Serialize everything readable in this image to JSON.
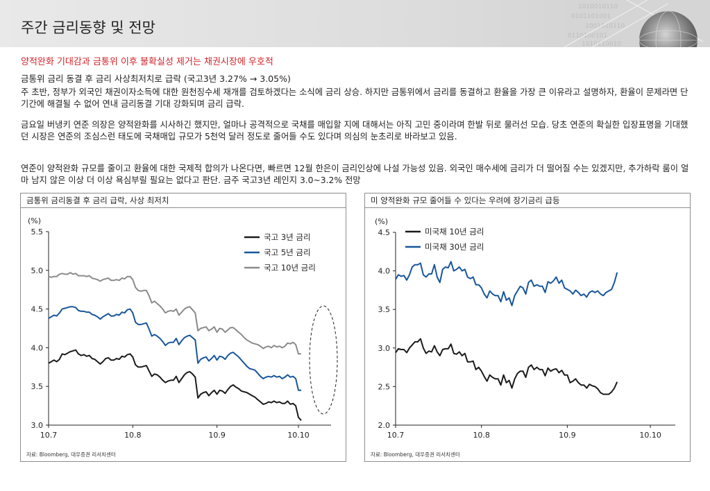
{
  "header": {
    "title": "주간 금리동향 및 전망"
  },
  "headline": "양적완화 기대감과 금통위 이후 불확실성 제거는 채권시장에 우호적",
  "subheadline": "금통위 금리 동결 후 금리 사상최저치로 급락 (국고3년 3.27% → 3.05%)",
  "paragraphs": [
    "주 초반, 정부가 외국인 채권이자소득에 대한 원천징수세 재개를 검토하겠다는 소식에 금리 상승. 하지만 금통위에서 금리를 동결하고 환율을 가장 큰 이유라고 설명하자, 환율이 문제라면 단기간에 해결될 수 없어 연내 금리동결 기대 강화되며 금리 급락.",
    "금요일 버냉키 연준 의장은 양적완화를 시사하긴 했지만, 얼마나 공격적으로 국채를 매입할 지에 대해서는 아직 고민 중이라며 한발 뒤로 물러선 모습. 당초 연준의 확실한 입장표명을 기대했던 시장은 연준의 조심스런 태도에 국채매입 규모가 5천억 달러 정도로 줄어들 수도 있다며 의심의 눈초리로 바라보고 있음.",
    "연준이 양적완화 규모를 줄이고 환율에 대한 국제적 합의가 나온다면, 빠르면 12월 한은이 금리인상에 나설 가능성 있음. 외국인 매수세에 금리가 더 떨어질 수는 있겠지만, 추가하락 룸이 얼마 남지 않은 이상 더 이상 욕심부릴 필요는 없다고 판단. 금주 국고3년 레인지 3.0~3.2% 전망"
  ],
  "chart_data": [
    {
      "type": "line",
      "title": "금통위 금리동결 후 금리 급락, 사상 최저치",
      "ylabel": "(%)",
      "ylim": [
        3.0,
        5.5
      ],
      "yticks": [
        "3.0",
        "3.5",
        "4.0",
        "4.5",
        "5.0",
        "5.5"
      ],
      "xticks": [
        "10.7",
        "10.8",
        "10.9",
        "10.10"
      ],
      "x_range": [
        0,
        104
      ],
      "x_tick_positions": [
        0,
        31,
        62,
        92
      ],
      "legend_position": "top-right",
      "series": [
        {
          "name": "국고 3년 금리",
          "color": "#1a1a1a",
          "values": [
            3.8,
            3.82,
            3.84,
            3.82,
            3.85,
            3.92,
            3.91,
            3.93,
            3.95,
            3.96,
            3.97,
            3.92,
            3.9,
            3.91,
            3.89,
            3.9,
            3.86,
            3.85,
            3.82,
            3.79,
            3.82,
            3.86,
            3.87,
            3.84,
            3.84,
            3.86,
            3.85,
            3.89,
            3.88,
            3.91,
            3.92,
            3.88,
            3.78,
            3.75,
            3.75,
            3.76,
            3.77,
            3.7,
            3.63,
            3.66,
            3.65,
            3.62,
            3.58,
            3.55,
            3.57,
            3.58,
            3.58,
            3.63,
            3.55,
            3.6,
            3.65,
            3.68,
            3.69,
            3.66,
            3.62,
            3.35,
            3.4,
            3.42,
            3.43,
            3.38,
            3.42,
            3.45,
            3.4,
            3.45,
            3.44,
            3.41,
            3.46,
            3.5,
            3.52,
            3.49,
            3.47,
            3.44,
            3.43,
            3.42,
            3.4,
            3.38,
            3.36,
            3.33,
            3.3,
            3.27,
            3.28,
            3.3,
            3.29,
            3.31,
            3.29,
            3.3,
            3.28,
            3.28,
            3.31,
            3.27,
            3.28,
            3.25,
            3.1,
            3.06
          ]
        },
        {
          "name": "국고 5년 금리",
          "color": "#17569b",
          "values": [
            4.38,
            4.4,
            4.42,
            4.41,
            4.45,
            4.5,
            4.51,
            4.52,
            4.53,
            4.53,
            4.52,
            4.48,
            4.47,
            4.47,
            4.46,
            4.46,
            4.43,
            4.42,
            4.4,
            4.37,
            4.4,
            4.42,
            4.44,
            4.41,
            4.41,
            4.43,
            4.42,
            4.46,
            4.45,
            4.49,
            4.5,
            4.45,
            4.33,
            4.3,
            4.3,
            4.31,
            4.32,
            4.24,
            4.15,
            4.17,
            4.15,
            4.12,
            4.08,
            4.03,
            4.06,
            4.07,
            4.07,
            4.12,
            4.04,
            4.09,
            4.13,
            4.15,
            4.16,
            4.13,
            4.1,
            3.8,
            3.85,
            3.87,
            3.88,
            3.83,
            3.86,
            3.9,
            3.84,
            3.89,
            3.88,
            3.85,
            3.9,
            3.93,
            3.94,
            3.91,
            3.88,
            3.84,
            3.8,
            3.76,
            3.73,
            3.72,
            3.71,
            3.67,
            3.63,
            3.6,
            3.62,
            3.63,
            3.62,
            3.64,
            3.62,
            3.63,
            3.6,
            3.62,
            3.65,
            3.62,
            3.63,
            3.6,
            3.45,
            3.45
          ]
        },
        {
          "name": "국고 10년 금리",
          "color": "#8a8a8a",
          "values": [
            4.92,
            4.91,
            4.92,
            4.92,
            4.95,
            4.96,
            4.95,
            4.95,
            4.97,
            4.95,
            4.96,
            4.93,
            4.93,
            4.93,
            4.92,
            4.93,
            4.9,
            4.89,
            4.88,
            4.86,
            4.88,
            4.89,
            4.9,
            4.87,
            4.87,
            4.88,
            4.87,
            4.9,
            4.89,
            4.92,
            4.92,
            4.88,
            4.78,
            4.74,
            4.73,
            4.74,
            4.74,
            4.67,
            4.58,
            4.6,
            4.57,
            4.54,
            4.5,
            4.45,
            4.47,
            4.48,
            4.47,
            4.5,
            4.42,
            4.46,
            4.5,
            4.52,
            4.53,
            4.49,
            4.45,
            4.22,
            4.25,
            4.26,
            4.27,
            4.22,
            4.24,
            4.27,
            4.2,
            4.25,
            4.24,
            4.2,
            4.23,
            4.26,
            4.26,
            4.23,
            4.2,
            4.17,
            4.13,
            4.1,
            4.08,
            4.06,
            4.05,
            4.04,
            4.02,
            3.99,
            4.01,
            4.02,
            4.0,
            4.03,
            4.01,
            4.02,
            4.0,
            4.02,
            4.06,
            4.05,
            4.07,
            4.04,
            3.92,
            3.92
          ]
        }
      ]
    },
    {
      "type": "line",
      "title": "미 양적완화 규모 줄어들 수 있다는 우려에 장기금리 급등",
      "ylabel": "(%)",
      "ylim": [
        2.0,
        4.5
      ],
      "yticks": [
        "2.0",
        "2.5",
        "3.0",
        "3.5",
        "4.0",
        "4.5"
      ],
      "xticks": [
        "10.7",
        "10.8",
        "10.9",
        "10.10"
      ],
      "x_range": [
        0,
        101
      ],
      "x_tick_positions": [
        0,
        31,
        62,
        92
      ],
      "legend_position": "top-left",
      "series": [
        {
          "name": "미국채 10년 금리",
          "color": "#1a1a1a",
          "values": [
            2.94,
            2.99,
            2.98,
            2.98,
            2.94,
            3.0,
            3.04,
            3.08,
            3.08,
            3.12,
            3.0,
            2.93,
            2.96,
            2.95,
            3.03,
            2.95,
            2.9,
            2.98,
            2.99,
            2.99,
            3.05,
            2.93,
            2.92,
            2.95,
            2.9,
            2.93,
            2.82,
            2.82,
            2.83,
            2.72,
            2.75,
            2.7,
            2.63,
            2.57,
            2.65,
            2.62,
            2.6,
            2.6,
            2.52,
            2.65,
            2.55,
            2.58,
            2.48,
            2.6,
            2.67,
            2.7,
            2.7,
            2.62,
            2.75,
            2.78,
            2.72,
            2.75,
            2.72,
            2.72,
            2.64,
            2.74,
            2.7,
            2.72,
            2.73,
            2.68,
            2.71,
            2.65,
            2.65,
            2.55,
            2.57,
            2.6,
            2.55,
            2.52,
            2.52,
            2.48,
            2.53,
            2.51,
            2.5,
            2.47,
            2.42,
            2.4,
            2.4,
            2.4,
            2.43,
            2.48,
            2.56
          ]
        },
        {
          "name": "미국채 30년 금리",
          "color": "#17569b",
          "values": [
            3.89,
            3.95,
            3.93,
            3.94,
            3.88,
            3.95,
            4.05,
            4.08,
            4.08,
            4.1,
            3.95,
            3.92,
            3.96,
            3.96,
            4.08,
            3.92,
            3.85,
            4.02,
            4.05,
            4.04,
            4.12,
            4.0,
            4.02,
            4.05,
            4.0,
            4.02,
            3.92,
            3.9,
            3.92,
            3.82,
            3.82,
            3.78,
            3.7,
            3.65,
            3.74,
            3.7,
            3.68,
            3.68,
            3.6,
            3.73,
            3.62,
            3.65,
            3.55,
            3.68,
            3.74,
            3.8,
            3.78,
            3.7,
            3.85,
            3.88,
            3.8,
            3.82,
            3.8,
            3.8,
            3.72,
            3.86,
            3.84,
            3.87,
            3.92,
            3.84,
            3.88,
            3.78,
            3.76,
            3.74,
            3.7,
            3.75,
            3.72,
            3.68,
            3.7,
            3.66,
            3.72,
            3.74,
            3.72,
            3.74,
            3.7,
            3.68,
            3.72,
            3.74,
            3.76,
            3.85,
            3.98
          ]
        }
      ]
    }
  ],
  "source_note": "자료: Bloomberg, 대우증권 리서치센터"
}
